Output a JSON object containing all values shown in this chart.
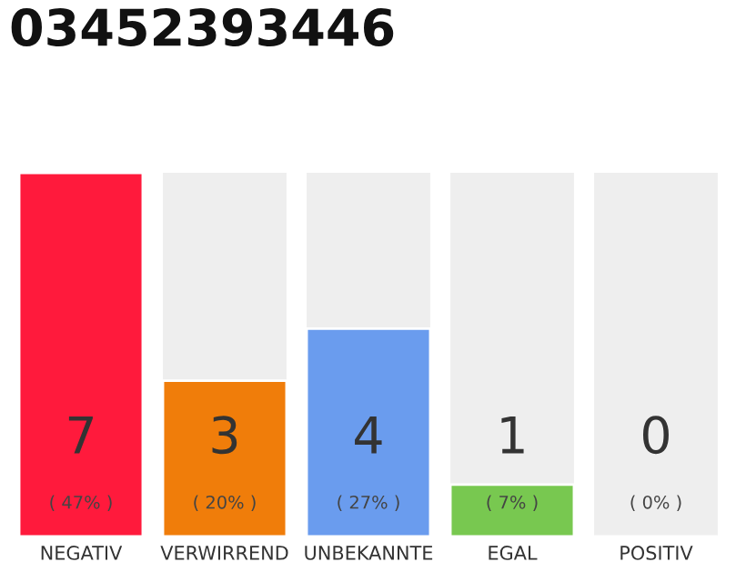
{
  "chart_data": {
    "type": "bar",
    "title": "03452393446",
    "categories": [
      "NEGATIV",
      "VERWIRREND",
      "UNBEKANNTE",
      "EGAL",
      "POSITIV"
    ],
    "values": [
      7,
      3,
      4,
      1,
      0
    ],
    "colors": [
      "#ff1a3c",
      "#f07d0a",
      "#6a9cee",
      "#78c850",
      null
    ],
    "ylim": [
      0,
      7
    ],
    "data_labels": true,
    "tick_labels": "x",
    "grid": false,
    "legend": false,
    "annotations": [
      "( 47% )",
      "( 20% )",
      "( 27% )",
      "( 7% )",
      "( 0% )"
    ]
  }
}
